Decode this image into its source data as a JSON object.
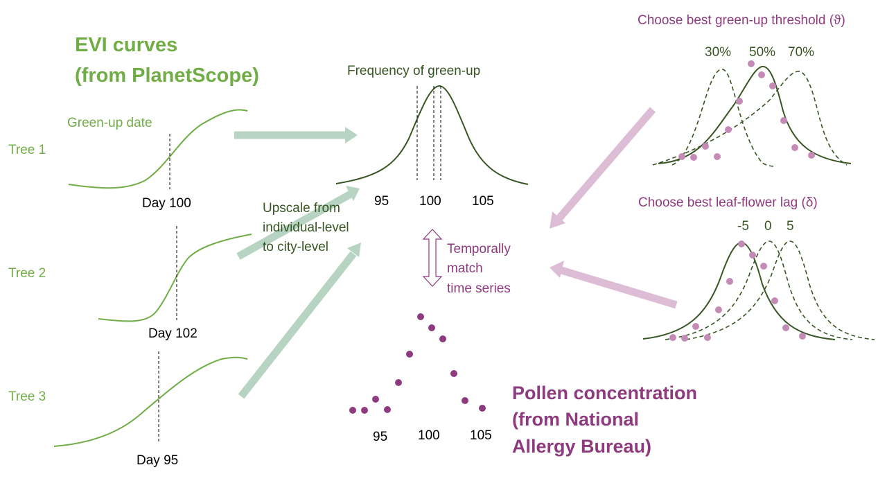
{
  "colors": {
    "light_green": "#70ad47",
    "dark_green": "#375623",
    "purple": "#8e3a7e",
    "light_purple": "#c48bb7",
    "arrow_green": "#b7d3c2",
    "arrow_purple": "#ddbdd6"
  },
  "evi": {
    "title_line1": "EVI curves",
    "title_line2": "(from PlanetScope)",
    "green_up_label": "Green-up date",
    "trees": [
      {
        "label": "Tree 1",
        "day_label": "Day 100"
      },
      {
        "label": "Tree 2",
        "day_label": "Day 102"
      },
      {
        "label": "Tree 3",
        "day_label": "Day 95"
      }
    ]
  },
  "frequency": {
    "title": "Frequency of green-up",
    "ticks": [
      "95",
      "100",
      "105"
    ]
  },
  "upscale": {
    "line1": "Upscale from",
    "line2": "individual-level",
    "line3": "to city-level"
  },
  "match": {
    "line1": "Temporally",
    "line2": "match",
    "line3": "time series"
  },
  "pollen": {
    "ticks": [
      "95",
      "100",
      "105"
    ],
    "title_line1": "Pollen concentration",
    "title_line2": "(from National",
    "title_line3": "Allergy Bureau)"
  },
  "threshold": {
    "title": "Choose best green-up threshold (ϑ)",
    "labels": [
      "30%",
      "50%",
      "70%"
    ]
  },
  "lag": {
    "title": "Choose best leaf-flower lag (δ)",
    "labels": [
      "-5",
      "0",
      "5"
    ]
  }
}
